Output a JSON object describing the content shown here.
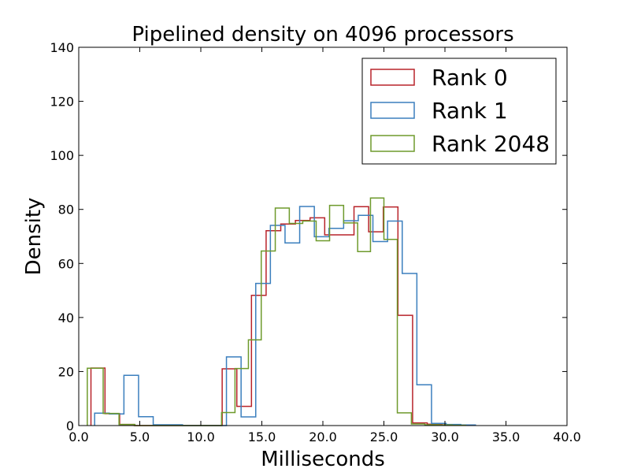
{
  "chart_data": {
    "type": "histogram-step",
    "title": "Pipelined density on 4096 processors",
    "xlabel": "Milliseconds",
    "ylabel": "Density",
    "xlim": [
      0,
      40
    ],
    "ylim": [
      0,
      140
    ],
    "x_ticks": [
      0,
      5,
      10,
      15,
      20,
      25,
      30,
      35,
      40
    ],
    "x_tick_labels": [
      "0.0",
      "5.0",
      "10.0",
      "15.0",
      "20.0",
      "25.0",
      "30.0",
      "35.0",
      "40.0"
    ],
    "y_ticks": [
      0,
      20,
      40,
      60,
      80,
      100,
      120,
      140
    ],
    "y_tick_labels": [
      "0",
      "20",
      "40",
      "60",
      "80",
      "100",
      "120",
      "140"
    ],
    "grid": false,
    "legend_position": "top-right",
    "series": [
      {
        "name": "Rank 0",
        "color": "#b8232a",
        "edges": [
          1.0,
          2.15,
          3.35,
          4.55,
          5.75,
          6.95,
          8.15,
          9.35,
          10.55,
          11.75,
          12.95,
          14.15,
          15.35,
          16.55,
          17.75,
          18.95,
          20.15,
          21.35,
          22.55,
          23.75,
          24.95,
          26.15,
          27.35,
          28.55,
          29.75,
          30.95,
          32.15
        ],
        "values": [
          21.3,
          4.4,
          0.4,
          0,
          0,
          0,
          0,
          0,
          0,
          21.0,
          7.1,
          48.2,
          72.1,
          74.6,
          75.9,
          76.9,
          70.6,
          70.6,
          81.0,
          71.7,
          80.9,
          40.8,
          1.0,
          0.5,
          0.3,
          0.2
        ]
      },
      {
        "name": "Rank 1",
        "color": "#3b7fbe",
        "edges": [
          1.3,
          2.5,
          3.7,
          4.9,
          6.1,
          7.3,
          8.5,
          9.7,
          10.9,
          12.1,
          13.3,
          14.5,
          15.7,
          16.9,
          18.1,
          19.3,
          20.5,
          21.7,
          22.9,
          24.1,
          25.3,
          26.5,
          27.7,
          28.9,
          30.1,
          31.3,
          32.5
        ],
        "values": [
          4.6,
          4.3,
          18.6,
          3.3,
          0.3,
          0.3,
          0,
          0,
          0,
          25.4,
          3.2,
          52.6,
          74.1,
          67.6,
          81.1,
          69.9,
          73.0,
          75.8,
          77.8,
          68.1,
          75.7,
          56.3,
          15.1,
          0.8,
          0.4,
          0.2
        ]
      },
      {
        "name": "Rank 2048",
        "color": "#6e9a2c",
        "edges": [
          0.7,
          2.0,
          3.3,
          4.6,
          5.9,
          7.2,
          8.5,
          9.8,
          11.1,
          11.7,
          12.8,
          13.9,
          14.95,
          16.1,
          17.25,
          18.35,
          19.45,
          20.55,
          21.7,
          22.85,
          23.9,
          25.0,
          26.1,
          27.25,
          28.35,
          29.5,
          30.6,
          31.7
        ],
        "values": [
          21.2,
          4.5,
          0.4,
          0,
          0,
          0,
          0,
          0,
          0,
          4.8,
          21.1,
          31.7,
          64.6,
          80.5,
          74.8,
          75.7,
          68.4,
          81.5,
          75.0,
          64.4,
          84.2,
          68.9,
          4.7,
          0.6,
          0.3,
          0.2,
          0.1
        ]
      }
    ]
  }
}
